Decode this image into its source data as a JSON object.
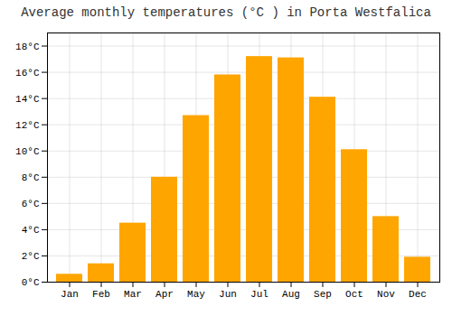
{
  "chart_data": {
    "type": "bar",
    "title": "Average monthly temperatures (°C ) in Porta Westfalica",
    "categories": [
      "Jan",
      "Feb",
      "Mar",
      "Apr",
      "May",
      "Jun",
      "Jul",
      "Aug",
      "Sep",
      "Oct",
      "Nov",
      "Dec"
    ],
    "values": [
      0.6,
      1.4,
      4.5,
      8.0,
      12.7,
      15.8,
      17.2,
      17.1,
      14.1,
      10.1,
      5.0,
      1.9
    ],
    "color": "#FFA500",
    "ylim": [
      0,
      19
    ],
    "yticks": [
      {
        "value": 0,
        "label": "0°C"
      },
      {
        "value": 2,
        "label": "2°C"
      },
      {
        "value": 4,
        "label": "4°C"
      },
      {
        "value": 6,
        "label": "6°C"
      },
      {
        "value": 8,
        "label": "8°C"
      },
      {
        "value": 10,
        "label": "10°C"
      },
      {
        "value": 12,
        "label": "12°C"
      },
      {
        "value": 14,
        "label": "14°C"
      },
      {
        "value": 16,
        "label": "16°C"
      },
      {
        "value": 18,
        "label": "18°C"
      }
    ],
    "grid": true
  }
}
